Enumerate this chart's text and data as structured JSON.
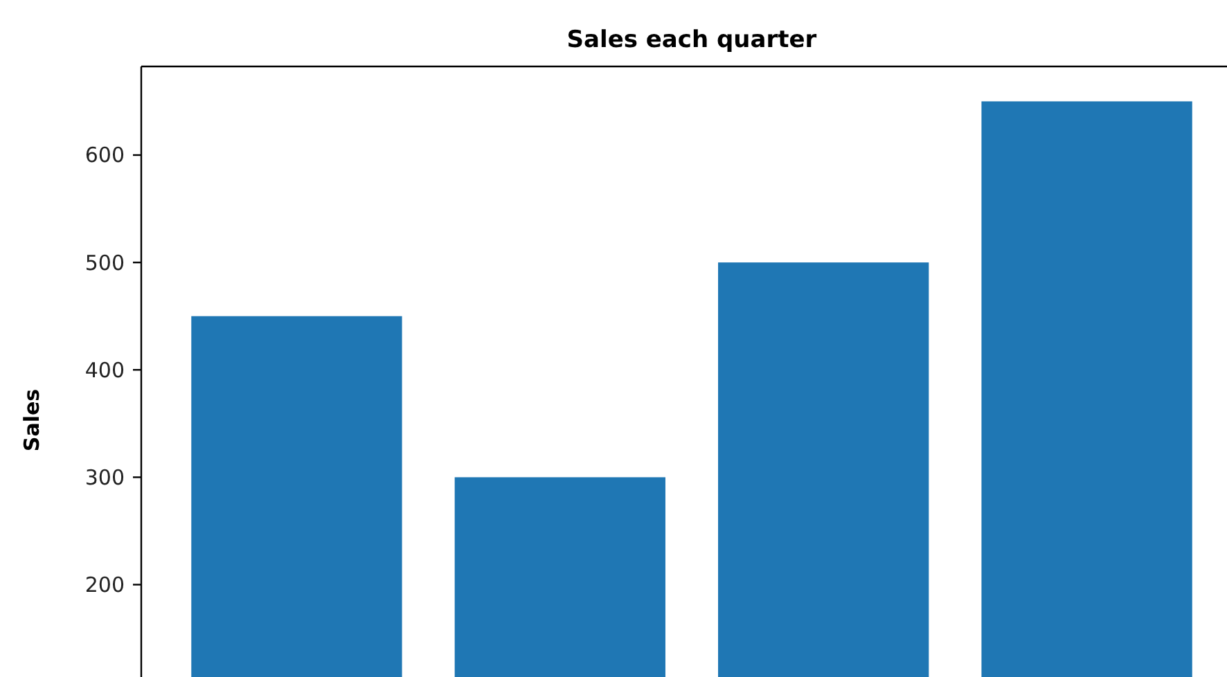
{
  "chart_data": {
    "type": "bar",
    "title": "Sales each quarter",
    "ylabel": "Sales",
    "categories": [
      null,
      null,
      null,
      null
    ],
    "values": [
      450,
      300,
      500,
      650
    ],
    "color": "#1f77b4",
    "ylim": [
      114,
      682.5
    ],
    "yticks": [
      200,
      300,
      400,
      500,
      600
    ],
    "grid": false
  }
}
